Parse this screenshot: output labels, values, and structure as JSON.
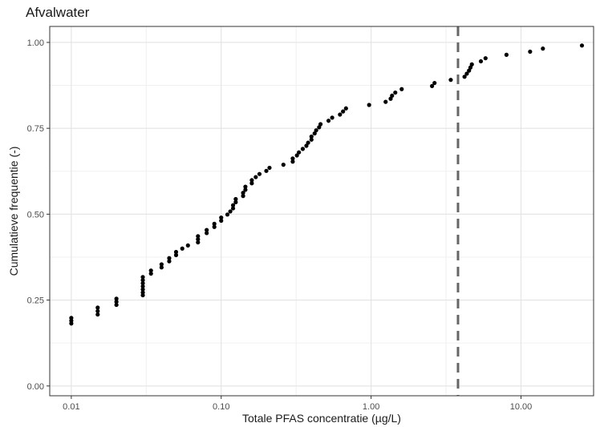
{
  "chart_data": {
    "type": "scatter",
    "title": "Afvalwater",
    "xlabel": "Totale PFAS concentratie (µg/L)",
    "ylabel": "Cumulatieve frequentie (-)",
    "x_scale": "log10",
    "xlim": [
      0.00718,
      30.5
    ],
    "ylim": [
      -0.0285,
      1.0465
    ],
    "x_ticks": [
      {
        "value": 0.01,
        "label": "0.01"
      },
      {
        "value": 0.1,
        "label": "0.10"
      },
      {
        "value": 1,
        "label": "1.00"
      },
      {
        "value": 10,
        "label": "10.00"
      }
    ],
    "y_ticks": [
      {
        "value": 0,
        "label": "0.00"
      },
      {
        "value": 0.25,
        "label": "0.25"
      },
      {
        "value": 0.5,
        "label": "0.50"
      },
      {
        "value": 0.75,
        "label": "0.75"
      },
      {
        "value": 1,
        "label": "1.00"
      }
    ],
    "grid": true,
    "reference_line": {
      "x": 3.8,
      "style": "dashed",
      "color": "#666666"
    },
    "point_color": "#000000",
    "points": [
      [
        0.01,
        0.182
      ],
      [
        0.01,
        0.19
      ],
      [
        0.01,
        0.198
      ],
      [
        0.015,
        0.208
      ],
      [
        0.015,
        0.218
      ],
      [
        0.015,
        0.228
      ],
      [
        0.02,
        0.236
      ],
      [
        0.02,
        0.245
      ],
      [
        0.02,
        0.254
      ],
      [
        0.03,
        0.264
      ],
      [
        0.03,
        0.272
      ],
      [
        0.03,
        0.281
      ],
      [
        0.03,
        0.29
      ],
      [
        0.03,
        0.299
      ],
      [
        0.03,
        0.308
      ],
      [
        0.03,
        0.317
      ],
      [
        0.034,
        0.327
      ],
      [
        0.034,
        0.336
      ],
      [
        0.04,
        0.345
      ],
      [
        0.04,
        0.354
      ],
      [
        0.045,
        0.363
      ],
      [
        0.045,
        0.372
      ],
      [
        0.05,
        0.381
      ],
      [
        0.05,
        0.39
      ],
      [
        0.055,
        0.4
      ],
      [
        0.06,
        0.409
      ],
      [
        0.07,
        0.418
      ],
      [
        0.07,
        0.427
      ],
      [
        0.07,
        0.436
      ],
      [
        0.08,
        0.445
      ],
      [
        0.08,
        0.454
      ],
      [
        0.09,
        0.463
      ],
      [
        0.09,
        0.472
      ],
      [
        0.1,
        0.481
      ],
      [
        0.1,
        0.49
      ],
      [
        0.11,
        0.499
      ],
      [
        0.115,
        0.508
      ],
      [
        0.12,
        0.517
      ],
      [
        0.12,
        0.526
      ],
      [
        0.125,
        0.535
      ],
      [
        0.125,
        0.544
      ],
      [
        0.14,
        0.553
      ],
      [
        0.14,
        0.562
      ],
      [
        0.145,
        0.571
      ],
      [
        0.145,
        0.58
      ],
      [
        0.16,
        0.59
      ],
      [
        0.16,
        0.599
      ],
      [
        0.17,
        0.608
      ],
      [
        0.18,
        0.617
      ],
      [
        0.2,
        0.626
      ],
      [
        0.21,
        0.635
      ],
      [
        0.26,
        0.644
      ],
      [
        0.3,
        0.653
      ],
      [
        0.3,
        0.662
      ],
      [
        0.32,
        0.671
      ],
      [
        0.33,
        0.68
      ],
      [
        0.35,
        0.69
      ],
      [
        0.37,
        0.699
      ],
      [
        0.38,
        0.708
      ],
      [
        0.4,
        0.717
      ],
      [
        0.4,
        0.726
      ],
      [
        0.42,
        0.735
      ],
      [
        0.43,
        0.744
      ],
      [
        0.45,
        0.753
      ],
      [
        0.46,
        0.762
      ],
      [
        0.52,
        0.772
      ],
      [
        0.55,
        0.781
      ],
      [
        0.62,
        0.79
      ],
      [
        0.65,
        0.799
      ],
      [
        0.68,
        0.808
      ],
      [
        0.97,
        0.818
      ],
      [
        1.25,
        0.827
      ],
      [
        1.35,
        0.836
      ],
      [
        1.38,
        0.845
      ],
      [
        1.45,
        0.854
      ],
      [
        1.6,
        0.864
      ],
      [
        2.55,
        0.873
      ],
      [
        2.65,
        0.882
      ],
      [
        3.4,
        0.891
      ],
      [
        4.2,
        0.9
      ],
      [
        4.35,
        0.909
      ],
      [
        4.5,
        0.918
      ],
      [
        4.6,
        0.927
      ],
      [
        4.7,
        0.936
      ],
      [
        5.4,
        0.945
      ],
      [
        5.8,
        0.954
      ],
      [
        8.0,
        0.964
      ],
      [
        11.5,
        0.973
      ],
      [
        14.0,
        0.982
      ],
      [
        25.5,
        0.991
      ]
    ]
  }
}
